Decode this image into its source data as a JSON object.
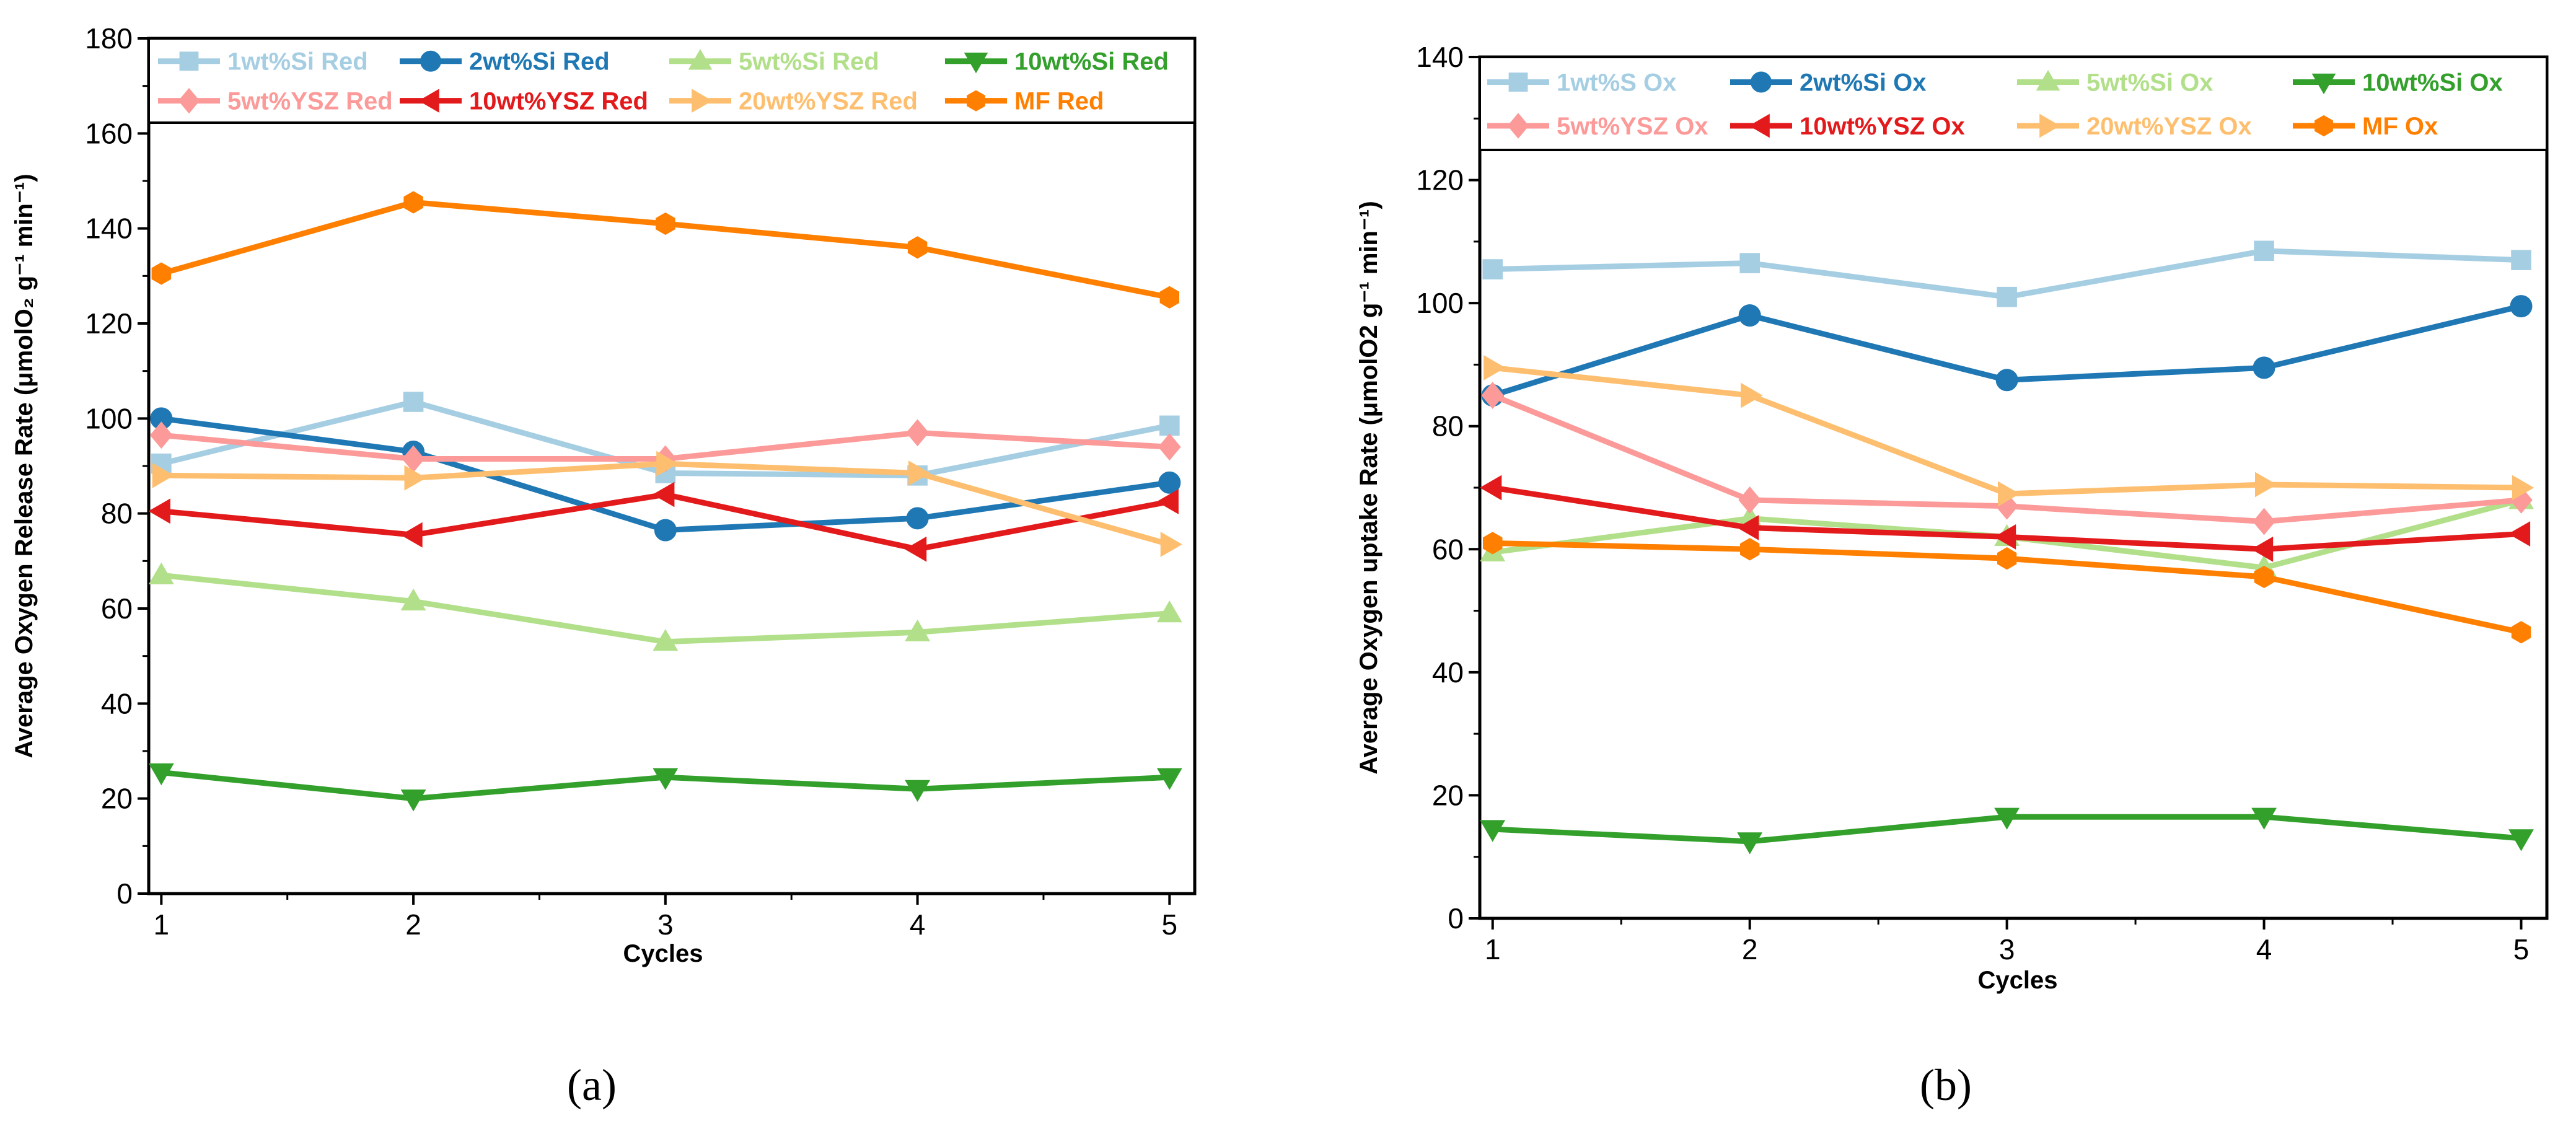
{
  "chart_data": [
    {
      "type": "line",
      "panel_label": "(a)",
      "xlabel": "Cycles",
      "ylabel": "Average Oxygen Release Rate (μmolO₂ g⁻¹ min⁻¹)",
      "x": [
        1,
        2,
        3,
        4,
        5
      ],
      "xlim": [
        0.95,
        5.1
      ],
      "ylim": [
        0,
        180
      ],
      "yticks": [
        0,
        20,
        40,
        60,
        80,
        100,
        120,
        140,
        160,
        180
      ],
      "legend_position": "top",
      "series": [
        {
          "name": "1wt%Si Red",
          "color": "#a6cee3",
          "marker": "square",
          "values": [
            90.5,
            103.5,
            88.5,
            88,
            98.5
          ]
        },
        {
          "name": "2wt%Si Red",
          "color": "#1f78b4",
          "marker": "circle",
          "values": [
            100,
            93,
            76.5,
            79,
            86.5
          ]
        },
        {
          "name": "5wt%Si Red",
          "color": "#b2df8a",
          "marker": "triangle-up",
          "values": [
            67,
            61.5,
            53,
            55,
            59
          ]
        },
        {
          "name": "10wt%Si Red",
          "color": "#33a02c",
          "marker": "triangle-down",
          "values": [
            25.5,
            20,
            24.5,
            22,
            24.5
          ]
        },
        {
          "name": "5wt%YSZ Red",
          "color": "#fb9a99",
          "marker": "diamond",
          "values": [
            96.5,
            91.5,
            91.5,
            97,
            94
          ]
        },
        {
          "name": "10wt%YSZ Red",
          "color": "#e31a1c",
          "marker": "triangle-left",
          "values": [
            80.5,
            75.5,
            84,
            72.5,
            82.5
          ]
        },
        {
          "name": "20wt%YSZ Red",
          "color": "#fdbf6f",
          "marker": "triangle-right",
          "values": [
            88,
            87.5,
            90.5,
            88.5,
            73.5
          ]
        },
        {
          "name": "MF Red",
          "color": "#ff7f00",
          "marker": "hexagon",
          "values": [
            130.5,
            145.5,
            141,
            136,
            125.5
          ]
        }
      ]
    },
    {
      "type": "line",
      "panel_label": "(b)",
      "xlabel": "Cycles",
      "ylabel": "Average Oxygen uptake Rate (μmolO2 g⁻¹ min⁻¹)",
      "x": [
        1,
        2,
        3,
        4,
        5
      ],
      "xlim": [
        0.95,
        5.1
      ],
      "ylim": [
        0,
        140
      ],
      "yticks": [
        0,
        20,
        40,
        60,
        80,
        100,
        120,
        140
      ],
      "legend_position": "top",
      "series": [
        {
          "name": "1wt%S Ox",
          "color": "#a6cee3",
          "marker": "square",
          "values": [
            105.5,
            106.5,
            101,
            108.5,
            107
          ]
        },
        {
          "name": "2wt%Si Ox",
          "color": "#1f78b4",
          "marker": "circle",
          "values": [
            85,
            98,
            87.5,
            89.5,
            99.5
          ]
        },
        {
          "name": "5wt%Si Ox",
          "color": "#b2df8a",
          "marker": "triangle-up",
          "values": [
            59.5,
            65,
            62,
            57,
            68
          ]
        },
        {
          "name": "10wt%Si Ox",
          "color": "#33a02c",
          "marker": "triangle-down",
          "values": [
            14.5,
            12.5,
            16.5,
            16.5,
            13
          ]
        },
        {
          "name": "5wt%YSZ Ox",
          "color": "#fb9a99",
          "marker": "diamond",
          "values": [
            85,
            68,
            67,
            64.5,
            68
          ]
        },
        {
          "name": "10wt%YSZ Ox",
          "color": "#e31a1c",
          "marker": "triangle-left",
          "values": [
            70,
            63.5,
            62,
            60,
            62.5
          ]
        },
        {
          "name": "20wt%YSZ Ox",
          "color": "#fdbf6f",
          "marker": "triangle-right",
          "values": [
            89.5,
            85,
            69,
            70.5,
            70
          ]
        },
        {
          "name": "MF Ox",
          "color": "#ff7f00",
          "marker": "hexagon",
          "values": [
            61,
            60,
            58.5,
            55.5,
            46.5
          ]
        }
      ]
    }
  ]
}
